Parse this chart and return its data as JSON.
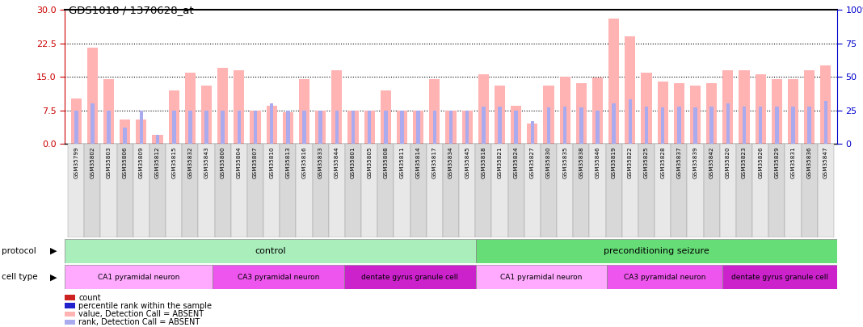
{
  "title": "GDS1018 / 1370628_at",
  "samples": [
    "GSM35799",
    "GSM35802",
    "GSM35803",
    "GSM35806",
    "GSM35809",
    "GSM35812",
    "GSM35815",
    "GSM35832",
    "GSM35843",
    "GSM35800",
    "GSM35804",
    "GSM35807",
    "GSM35810",
    "GSM35813",
    "GSM35816",
    "GSM35833",
    "GSM35844",
    "GSM35801",
    "GSM35805",
    "GSM35808",
    "GSM35811",
    "GSM35814",
    "GSM35817",
    "GSM35834",
    "GSM35845",
    "GSM35818",
    "GSM35821",
    "GSM35824",
    "GSM35827",
    "GSM35830",
    "GSM35835",
    "GSM35838",
    "GSM35846",
    "GSM35819",
    "GSM35822",
    "GSM35825",
    "GSM35828",
    "GSM35837",
    "GSM35839",
    "GSM35842",
    "GSM35820",
    "GSM35823",
    "GSM35826",
    "GSM35829",
    "GSM35831",
    "GSM35836",
    "GSM35847"
  ],
  "values": [
    10.2,
    21.5,
    14.4,
    5.5,
    5.5,
    2.0,
    12.0,
    16.0,
    13.0,
    17.0,
    16.5,
    7.5,
    8.5,
    7.0,
    14.4,
    7.5,
    16.5,
    7.5,
    7.5,
    12.0,
    7.5,
    7.5,
    14.5,
    7.5,
    7.5,
    15.5,
    13.0,
    8.5,
    4.5,
    13.0,
    15.0,
    13.5,
    14.8,
    28.0,
    24.0,
    16.0,
    14.0,
    13.5,
    13.0,
    13.5,
    16.5,
    16.5,
    15.5,
    14.5,
    14.5,
    16.5,
    17.5
  ],
  "ranks": [
    25.0,
    30.0,
    25.0,
    12.0,
    25.0,
    7.0,
    25.0,
    25.0,
    25.0,
    25.0,
    25.0,
    25.0,
    30.0,
    25.0,
    25.0,
    25.0,
    25.0,
    25.0,
    25.0,
    25.0,
    25.0,
    25.0,
    25.0,
    25.0,
    25.0,
    28.0,
    28.0,
    25.0,
    17.0,
    27.0,
    28.0,
    27.0,
    25.0,
    30.0,
    33.0,
    28.0,
    27.0,
    28.0,
    27.0,
    28.0,
    30.0,
    28.0,
    28.0,
    28.0,
    28.0,
    28.0,
    32.0
  ],
  "protocol_groups": [
    {
      "label": "control",
      "start": 0,
      "end": 24,
      "color": "#AAEEBB"
    },
    {
      "label": "preconditioning seizure",
      "start": 25,
      "end": 46,
      "color": "#66DD77"
    }
  ],
  "cell_type_groups": [
    {
      "label": "CA1 pyramidal neuron",
      "start": 0,
      "end": 8,
      "color": "#FFAAFF"
    },
    {
      "label": "CA3 pyramidal neuron",
      "start": 9,
      "end": 16,
      "color": "#EE66EE"
    },
    {
      "label": "dentate gyrus granule cell",
      "start": 17,
      "end": 24,
      "color": "#DD44DD"
    },
    {
      "label": "CA1 pyramidal neuron",
      "start": 25,
      "end": 32,
      "color": "#FFAAFF"
    },
    {
      "label": "CA3 pyramidal neuron",
      "start": 33,
      "end": 39,
      "color": "#EE66EE"
    },
    {
      "label": "dentate gyrus granule cell",
      "start": 40,
      "end": 46,
      "color": "#DD44DD"
    }
  ],
  "ylim_left": [
    0,
    30
  ],
  "ylim_right": [
    0,
    100
  ],
  "yticks_left": [
    0,
    7.5,
    15,
    22.5,
    30
  ],
  "yticks_right": [
    0,
    25,
    50,
    75,
    100
  ],
  "bar_color_absent": "#FFB3B3",
  "rank_color_absent": "#AAAAEE",
  "legend_items": [
    {
      "color": "#CC2222",
      "label": "count",
      "marker": "s"
    },
    {
      "color": "#2222CC",
      "label": "percentile rank within the sample",
      "marker": "s"
    },
    {
      "color": "#FFB3B3",
      "label": "value, Detection Call = ABSENT",
      "marker": "s"
    },
    {
      "color": "#AAAAEE",
      "label": "rank, Detection Call = ABSENT",
      "marker": "s"
    }
  ]
}
